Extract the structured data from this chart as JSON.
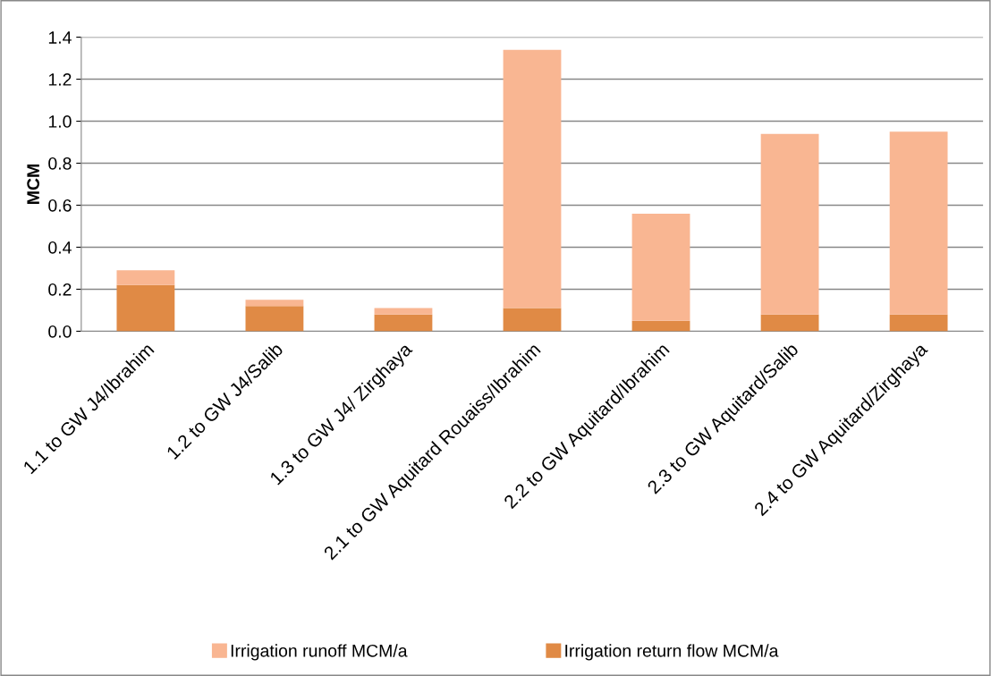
{
  "chart_data": {
    "type": "bar",
    "stacked": true,
    "ylabel": "MCM",
    "categories": [
      "1.1 to GW J4/Ibrahim",
      "1.2 to GW J4/Salib",
      "1.3 to GW J4/ Zirghaya",
      "2.1 to GW Aquitard Rouaiss/Ibrahim",
      "2.2 to GW Aquitard/Ibrahim",
      "2.3 to GW Aquitard/Salib",
      "2.4 to GW Aquitard/Zirghaya"
    ],
    "series": [
      {
        "name": "Irrigation return flow MCM/a",
        "color": "#e08a45",
        "values": [
          0.22,
          0.12,
          0.08,
          0.11,
          0.05,
          0.08,
          0.08
        ]
      },
      {
        "name": "Irrigation runoff MCM/a",
        "color": "#f9b692",
        "values": [
          0.07,
          0.03,
          0.03,
          1.23,
          0.51,
          0.86,
          0.87
        ]
      }
    ],
    "ylim": [
      0,
      1.4
    ],
    "yticks": [
      {
        "value": 0,
        "label": "0.0"
      },
      0.2,
      0.4,
      0.6,
      0.8,
      {
        "value": 1,
        "label": "1.0"
      },
      1.2,
      1.4
    ],
    "grid": "y",
    "legend": "bottom"
  }
}
